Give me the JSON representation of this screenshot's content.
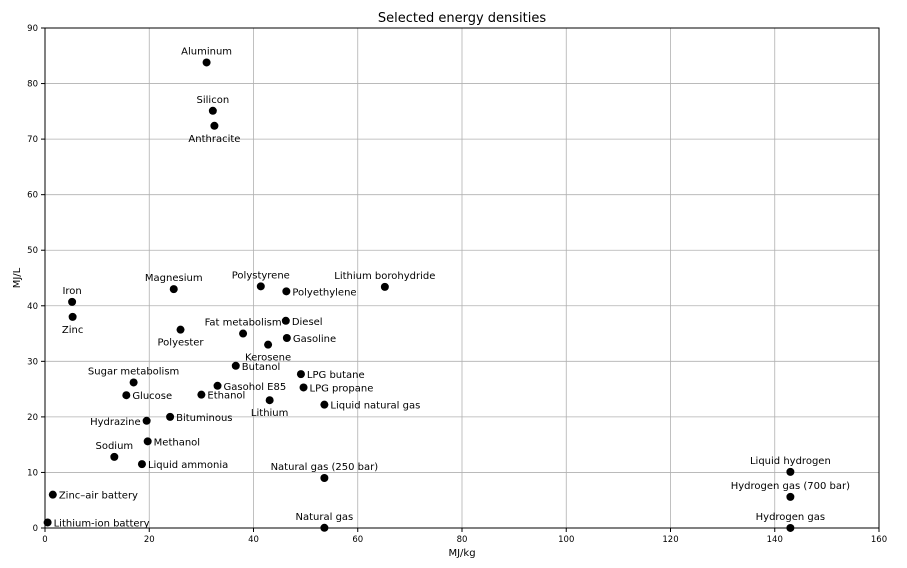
{
  "chart_data": {
    "type": "scatter",
    "title": "Selected energy densities",
    "xlabel": "MJ/kg",
    "ylabel": "MJ/L",
    "xlim": [
      0,
      160
    ],
    "ylim": [
      0,
      90
    ],
    "xticks": [
      0,
      20,
      40,
      60,
      80,
      100,
      120,
      140,
      160
    ],
    "yticks": [
      0,
      10,
      20,
      30,
      40,
      50,
      60,
      70,
      80,
      90
    ],
    "grid": true,
    "marker_color": "#000000",
    "points": [
      {
        "label": "Aluminum",
        "x": 31,
        "y": 83.8,
        "label_pos": "above"
      },
      {
        "label": "Silicon",
        "x": 32.2,
        "y": 75.1,
        "label_pos": "above"
      },
      {
        "label": "Anthracite",
        "x": 32.5,
        "y": 72.4,
        "label_pos": "below"
      },
      {
        "label": "Magnesium",
        "x": 24.7,
        "y": 43,
        "label_pos": "above"
      },
      {
        "label": "Polystyrene",
        "x": 41.4,
        "y": 43.5,
        "label_pos": "above"
      },
      {
        "label": "Polyethylene",
        "x": 46.3,
        "y": 42.6,
        "label_pos": "right"
      },
      {
        "label": "Lithium borohydride",
        "x": 65.2,
        "y": 43.4,
        "label_pos": "above"
      },
      {
        "label": "Iron",
        "x": 5.2,
        "y": 40.7,
        "label_pos": "above"
      },
      {
        "label": "Zinc",
        "x": 5.3,
        "y": 38,
        "label_pos": "below"
      },
      {
        "label": "Polyester",
        "x": 26,
        "y": 35.7,
        "label_pos": "below"
      },
      {
        "label": "Fat metabolism",
        "x": 38,
        "y": 35,
        "label_pos": "above"
      },
      {
        "label": "Diesel",
        "x": 46.2,
        "y": 37.3,
        "label_pos": "right"
      },
      {
        "label": "Gasoline",
        "x": 46.4,
        "y": 34.2,
        "label_pos": "right"
      },
      {
        "label": "Kerosene",
        "x": 42.8,
        "y": 33,
        "label_pos": "below"
      },
      {
        "label": "Butanol",
        "x": 36.6,
        "y": 29.2,
        "label_pos": "right"
      },
      {
        "label": "LPG butane",
        "x": 49.1,
        "y": 27.7,
        "label_pos": "right"
      },
      {
        "label": "Sugar metabolism",
        "x": 17,
        "y": 26.2,
        "label_pos": "above"
      },
      {
        "label": "Gasohol E85",
        "x": 33.1,
        "y": 25.6,
        "label_pos": "right"
      },
      {
        "label": "LPG propane",
        "x": 49.6,
        "y": 25.3,
        "label_pos": "right"
      },
      {
        "label": "Glucose",
        "x": 15.6,
        "y": 23.9,
        "label_pos": "right"
      },
      {
        "label": "Ethanol",
        "x": 30,
        "y": 24,
        "label_pos": "right"
      },
      {
        "label": "Lithium",
        "x": 43.1,
        "y": 23,
        "label_pos": "below"
      },
      {
        "label": "Liquid natural gas",
        "x": 53.6,
        "y": 22.2,
        "label_pos": "right"
      },
      {
        "label": "Hydrazine",
        "x": 19.5,
        "y": 19.3,
        "label_pos": "left"
      },
      {
        "label": "Bituminous",
        "x": 24,
        "y": 20,
        "label_pos": "right"
      },
      {
        "label": "Methanol",
        "x": 19.7,
        "y": 15.6,
        "label_pos": "right"
      },
      {
        "label": "Sodium",
        "x": 13.3,
        "y": 12.8,
        "label_pos": "above"
      },
      {
        "label": "Liquid ammonia",
        "x": 18.6,
        "y": 11.5,
        "label_pos": "right"
      },
      {
        "label": "Natural gas (250 bar)",
        "x": 53.6,
        "y": 9,
        "label_pos": "above"
      },
      {
        "label": "Zinc–air battery",
        "x": 1.5,
        "y": 6,
        "label_pos": "right"
      },
      {
        "label": "Lithium-ion battery",
        "x": 0.5,
        "y": 1,
        "label_pos": "right"
      },
      {
        "label": "Natural gas",
        "x": 53.6,
        "y": 0.04,
        "label_pos": "above"
      },
      {
        "label": "Liquid hydrogen",
        "x": 143,
        "y": 10.1,
        "label_pos": "above"
      },
      {
        "label": "Hydrogen gas (700 bar)",
        "x": 143,
        "y": 5.6,
        "label_pos": "above"
      },
      {
        "label": "Hydrogen gas",
        "x": 143,
        "y": 0.01,
        "label_pos": "above"
      }
    ]
  }
}
